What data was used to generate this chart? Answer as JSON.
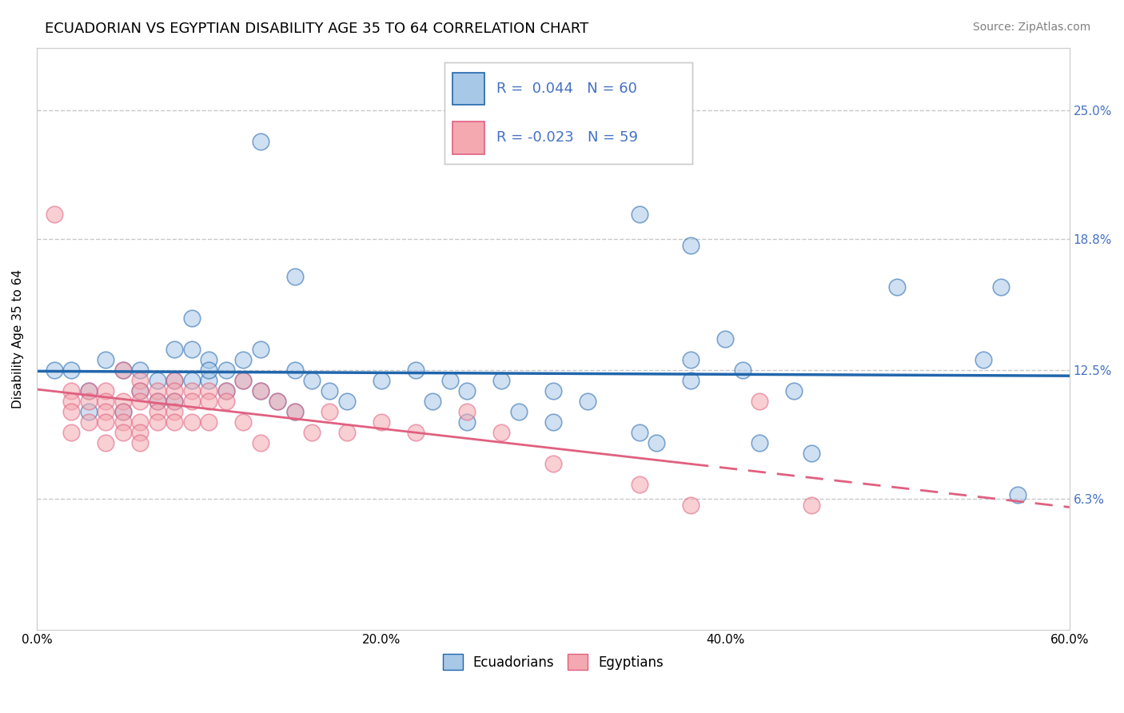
{
  "title": "ECUADORIAN VS EGYPTIAN DISABILITY AGE 35 TO 64 CORRELATION CHART",
  "source_text": "Source: ZipAtlas.com",
  "ylabel": "Disability Age 35 to 64",
  "xlim": [
    0.0,
    0.6
  ],
  "ylim": [
    0.0,
    0.28
  ],
  "xtick_labels": [
    "0.0%",
    "20.0%",
    "40.0%",
    "60.0%"
  ],
  "xtick_values": [
    0.0,
    0.2,
    0.4,
    0.6
  ],
  "ytick_labels": [
    "6.3%",
    "12.5%",
    "18.8%",
    "25.0%"
  ],
  "ytick_values": [
    0.063,
    0.125,
    0.188,
    0.25
  ],
  "color_blue": "#a8c8e8",
  "color_pink": "#f4a8b0",
  "color_blue_line": "#2166ac",
  "color_pink_line": "#e06080",
  "color_right_tick": "#4472c4",
  "background_color": "#ffffff",
  "grid_color": "#c8c8c8",
  "ecuadorians": [
    [
      0.01,
      0.125
    ],
    [
      0.02,
      0.125
    ],
    [
      0.03,
      0.115
    ],
    [
      0.03,
      0.105
    ],
    [
      0.04,
      0.13
    ],
    [
      0.05,
      0.125
    ],
    [
      0.05,
      0.105
    ],
    [
      0.06,
      0.125
    ],
    [
      0.06,
      0.115
    ],
    [
      0.07,
      0.12
    ],
    [
      0.07,
      0.11
    ],
    [
      0.08,
      0.135
    ],
    [
      0.08,
      0.12
    ],
    [
      0.08,
      0.11
    ],
    [
      0.09,
      0.15
    ],
    [
      0.09,
      0.135
    ],
    [
      0.09,
      0.12
    ],
    [
      0.1,
      0.13
    ],
    [
      0.1,
      0.12
    ],
    [
      0.1,
      0.125
    ],
    [
      0.11,
      0.125
    ],
    [
      0.11,
      0.115
    ],
    [
      0.12,
      0.13
    ],
    [
      0.12,
      0.12
    ],
    [
      0.13,
      0.135
    ],
    [
      0.13,
      0.115
    ],
    [
      0.14,
      0.11
    ],
    [
      0.15,
      0.125
    ],
    [
      0.15,
      0.105
    ],
    [
      0.16,
      0.12
    ],
    [
      0.17,
      0.115
    ],
    [
      0.18,
      0.11
    ],
    [
      0.2,
      0.12
    ],
    [
      0.22,
      0.125
    ],
    [
      0.23,
      0.11
    ],
    [
      0.24,
      0.12
    ],
    [
      0.25,
      0.115
    ],
    [
      0.25,
      0.1
    ],
    [
      0.27,
      0.12
    ],
    [
      0.28,
      0.105
    ],
    [
      0.3,
      0.115
    ],
    [
      0.3,
      0.1
    ],
    [
      0.32,
      0.11
    ],
    [
      0.35,
      0.095
    ],
    [
      0.36,
      0.09
    ],
    [
      0.38,
      0.13
    ],
    [
      0.38,
      0.12
    ],
    [
      0.4,
      0.14
    ],
    [
      0.41,
      0.125
    ],
    [
      0.42,
      0.09
    ],
    [
      0.44,
      0.115
    ],
    [
      0.45,
      0.085
    ],
    [
      0.13,
      0.235
    ],
    [
      0.35,
      0.2
    ],
    [
      0.38,
      0.185
    ],
    [
      0.15,
      0.17
    ],
    [
      0.5,
      0.165
    ],
    [
      0.56,
      0.165
    ],
    [
      0.57,
      0.065
    ],
    [
      0.55,
      0.13
    ]
  ],
  "egyptians": [
    [
      0.01,
      0.2
    ],
    [
      0.02,
      0.115
    ],
    [
      0.02,
      0.11
    ],
    [
      0.02,
      0.105
    ],
    [
      0.02,
      0.095
    ],
    [
      0.03,
      0.115
    ],
    [
      0.03,
      0.11
    ],
    [
      0.03,
      0.1
    ],
    [
      0.04,
      0.115
    ],
    [
      0.04,
      0.11
    ],
    [
      0.04,
      0.105
    ],
    [
      0.04,
      0.1
    ],
    [
      0.04,
      0.09
    ],
    [
      0.05,
      0.125
    ],
    [
      0.05,
      0.11
    ],
    [
      0.05,
      0.105
    ],
    [
      0.05,
      0.1
    ],
    [
      0.05,
      0.095
    ],
    [
      0.06,
      0.12
    ],
    [
      0.06,
      0.115
    ],
    [
      0.06,
      0.11
    ],
    [
      0.06,
      0.1
    ],
    [
      0.06,
      0.095
    ],
    [
      0.06,
      0.09
    ],
    [
      0.07,
      0.115
    ],
    [
      0.07,
      0.11
    ],
    [
      0.07,
      0.105
    ],
    [
      0.07,
      0.1
    ],
    [
      0.08,
      0.12
    ],
    [
      0.08,
      0.115
    ],
    [
      0.08,
      0.11
    ],
    [
      0.08,
      0.105
    ],
    [
      0.08,
      0.1
    ],
    [
      0.09,
      0.115
    ],
    [
      0.09,
      0.11
    ],
    [
      0.09,
      0.1
    ],
    [
      0.1,
      0.115
    ],
    [
      0.1,
      0.11
    ],
    [
      0.1,
      0.1
    ],
    [
      0.11,
      0.115
    ],
    [
      0.11,
      0.11
    ],
    [
      0.12,
      0.12
    ],
    [
      0.12,
      0.1
    ],
    [
      0.13,
      0.115
    ],
    [
      0.13,
      0.09
    ],
    [
      0.14,
      0.11
    ],
    [
      0.15,
      0.105
    ],
    [
      0.16,
      0.095
    ],
    [
      0.17,
      0.105
    ],
    [
      0.18,
      0.095
    ],
    [
      0.2,
      0.1
    ],
    [
      0.22,
      0.095
    ],
    [
      0.25,
      0.105
    ],
    [
      0.27,
      0.095
    ],
    [
      0.3,
      0.08
    ],
    [
      0.35,
      0.07
    ],
    [
      0.38,
      0.06
    ],
    [
      0.42,
      0.11
    ],
    [
      0.45,
      0.06
    ]
  ],
  "title_fontsize": 13,
  "axis_label_fontsize": 11,
  "tick_fontsize": 11,
  "legend_fontsize": 13,
  "source_fontsize": 10
}
